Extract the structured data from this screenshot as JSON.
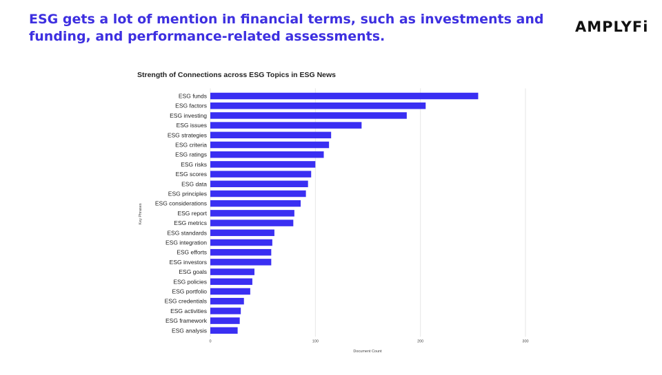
{
  "slide": {
    "headline": "ESG gets a lot of mention in financial terms, such as investments and funding, and performance-related assessments.",
    "logo_text": "AMPLYFi"
  },
  "colors": {
    "headline": "#3d2fe0",
    "bar": "#3a2ff2",
    "grid": "#e6e6e6",
    "text": "#222222"
  },
  "chart_data": {
    "type": "bar",
    "orientation": "horizontal",
    "title": "Strength of Connections across ESG Topics in ESG News",
    "xlabel": "Document Count",
    "ylabel": "Key Phrases",
    "xlim": [
      0,
      300
    ],
    "xticks": [
      0,
      100,
      200,
      300
    ],
    "grid": true,
    "categories": [
      "ESG funds",
      "ESG factors",
      "ESG investing",
      "ESG issues",
      "ESG strategies",
      "ESG criteria",
      "ESG ratings",
      "ESG risks",
      "ESG scores",
      "ESG data",
      "ESG principles",
      "ESG considerations",
      "ESG report",
      "ESG metrics",
      "ESG standards",
      "ESG integration",
      "ESG efforts",
      "ESG investors",
      "ESG goals",
      "ESG policies",
      "ESG portfolio",
      "ESG credentials",
      "ESG activities",
      "ESG framework",
      "ESG analysis"
    ],
    "values": [
      255,
      205,
      187,
      144,
      115,
      113,
      108,
      100,
      96,
      93,
      91,
      86,
      80,
      79,
      61,
      59,
      58,
      58,
      42,
      40,
      38,
      32,
      29,
      28,
      26
    ]
  }
}
